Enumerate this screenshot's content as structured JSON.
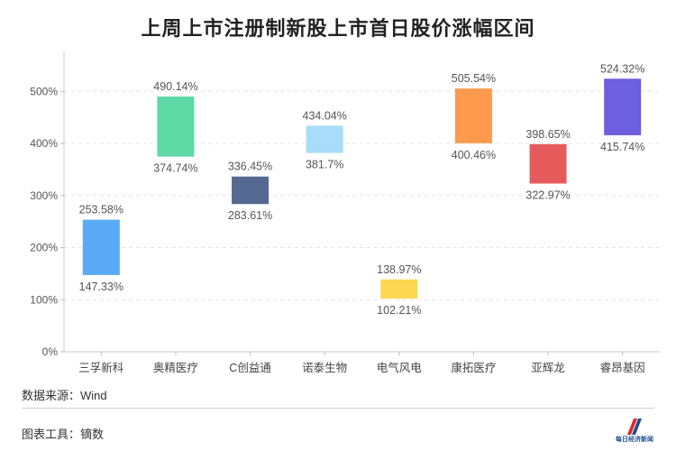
{
  "chart_data": {
    "type": "bar",
    "subtype": "floating-range",
    "title": "上周上市注册制新股上市首日股价涨幅区间",
    "categories": [
      "三孚新科",
      "奥精医疗",
      "C创益通",
      "诺泰生物",
      "电气风电",
      "康拓医疗",
      "亚辉龙",
      "睿昂基因"
    ],
    "low": [
      147.33,
      374.74,
      283.61,
      381.7,
      102.21,
      400.46,
      322.97,
      415.74
    ],
    "high": [
      253.58,
      490.14,
      336.45,
      434.04,
      138.97,
      505.54,
      398.65,
      524.32
    ],
    "low_labels": [
      "147.33%",
      "374.74%",
      "283.61%",
      "381.7%",
      "102.21%",
      "400.46%",
      "322.97%",
      "415.74%"
    ],
    "high_labels": [
      "253.58%",
      "490.14%",
      "336.45%",
      "434.04%",
      "138.97%",
      "505.54%",
      "398.65%",
      "524.32%"
    ],
    "colors": [
      "#5aabf5",
      "#5ed8a5",
      "#55688f",
      "#a8dcf8",
      "#fbd850",
      "#fd9a4e",
      "#e55b5b",
      "#6e5ee0"
    ],
    "ylim": [
      0,
      575
    ],
    "yticks": [
      0,
      100,
      200,
      300,
      400,
      500
    ],
    "ytick_labels": [
      "0%",
      "100%",
      "200%",
      "300%",
      "400%",
      "500%"
    ],
    "grid": true
  },
  "footer": {
    "source": "数据来源：Wind",
    "tool": "图表工具：镝数",
    "logo_text": "每日经济新闻"
  }
}
